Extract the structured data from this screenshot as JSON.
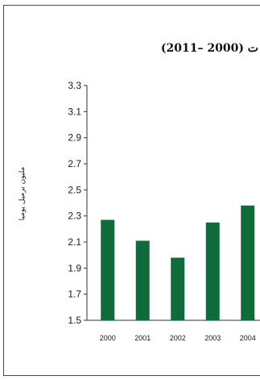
{
  "chart_data": {
    "type": "bar",
    "title": "ت (2000 –2011)",
    "xlabel": "",
    "ylabel": "مليون برميل يوميا",
    "categories": [
      "2000",
      "2001",
      "2002",
      "2003",
      "2004"
    ],
    "values": [
      2.27,
      2.11,
      1.98,
      2.25,
      2.38
    ],
    "ylim": [
      1.5,
      3.3
    ],
    "yticks": [
      "1.5",
      "1.7",
      "1.9",
      "2.1",
      "2.3",
      "2.5",
      "2.7",
      "2.9",
      "3.1",
      "3.3"
    ],
    "grid": false,
    "legend": "none",
    "colors": {
      "bar": "#0f6b3a",
      "axis": "#333333"
    }
  }
}
